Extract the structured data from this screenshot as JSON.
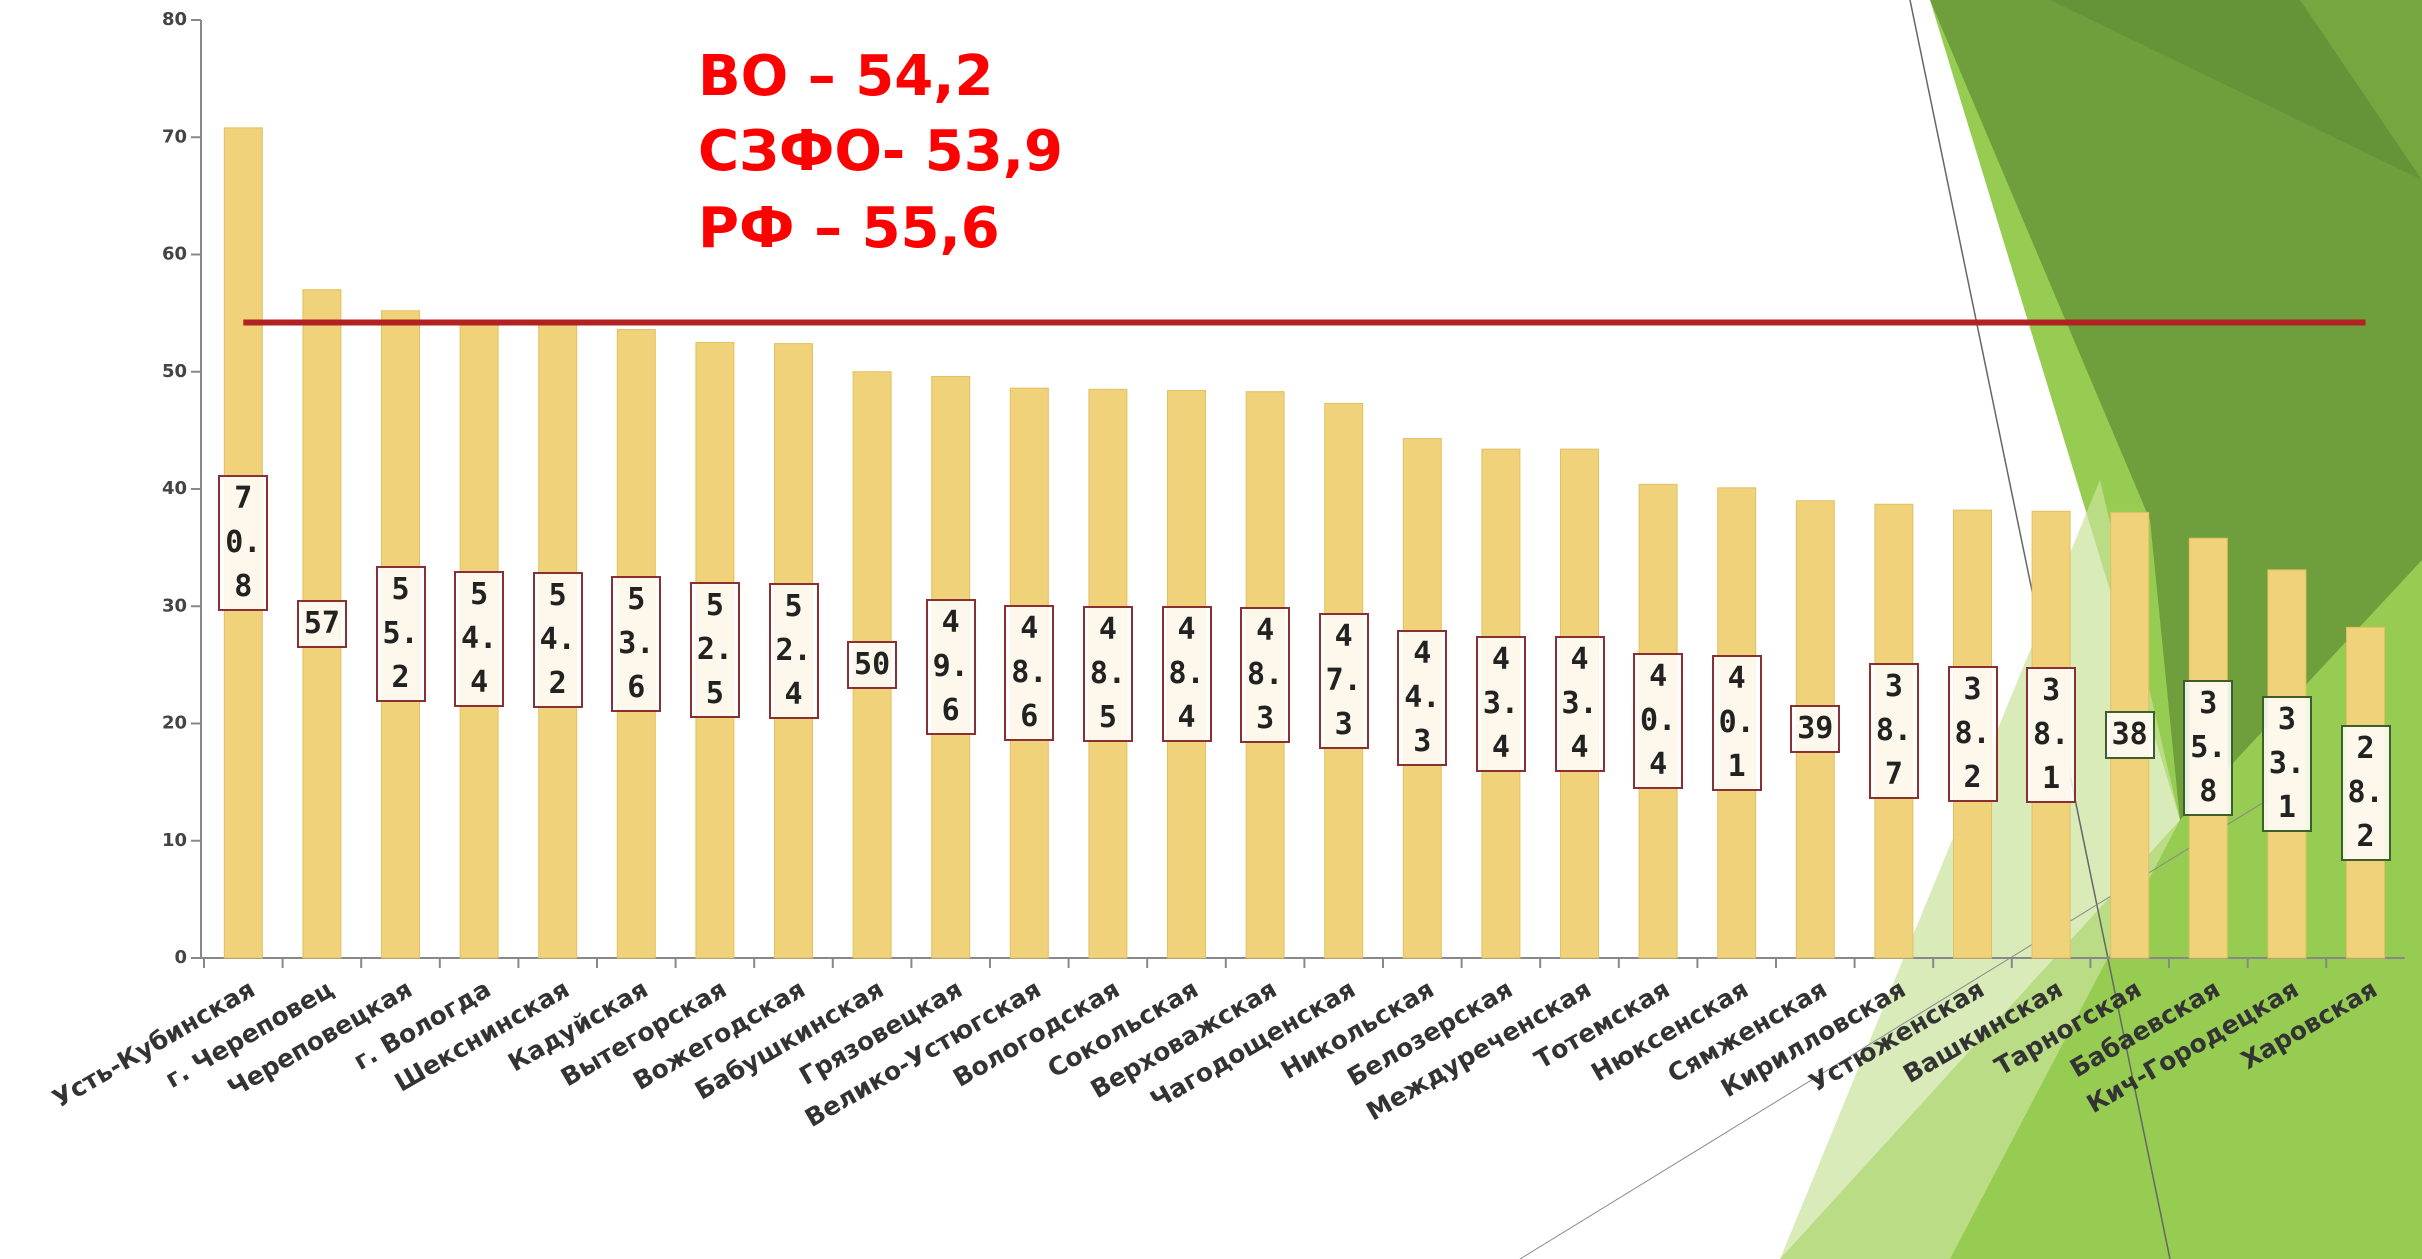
{
  "chart_data": {
    "type": "bar",
    "annotations": [
      "ВО – 54,2",
      "СЗФО- 53,9",
      "РФ – 55,6"
    ],
    "reference_value": 54.2,
    "reference_color": "#b22222",
    "categories": [
      "Усть-Кубинская",
      "г. Череповец",
      "Череповецкая",
      "г. Вологда",
      "Шекснинская",
      "Кадуйская",
      "Вытегорская",
      "Вожегодская",
      "Бабушкинская",
      "Грязовецкая",
      "Велико-Устюгская",
      "Вологодская",
      "Сокольская",
      "Верховажская",
      "Чагодощенская",
      "Никольская",
      "Белозерская",
      "Междуреченская",
      "Тотемская",
      "Нюксенская",
      "Сямженская",
      "Кирилловская",
      "Устюженская",
      "Вашкинская",
      "Тарногская",
      "Бабаевская",
      "Кич-Городецкая",
      "Харовская"
    ],
    "values": [
      70.8,
      57,
      55.2,
      54.4,
      54.2,
      53.6,
      52.5,
      52.4,
      50,
      49.6,
      48.6,
      48.5,
      48.4,
      48.3,
      47.3,
      44.3,
      43.4,
      43.4,
      40.4,
      40.1,
      39,
      38.7,
      38.2,
      38.1,
      38,
      35.8,
      33.1,
      28.2
    ],
    "color": "#f0d27a",
    "ylim": [
      0,
      80
    ],
    "yticks": [
      0,
      10,
      20,
      30,
      40,
      50,
      60,
      70,
      80
    ]
  }
}
